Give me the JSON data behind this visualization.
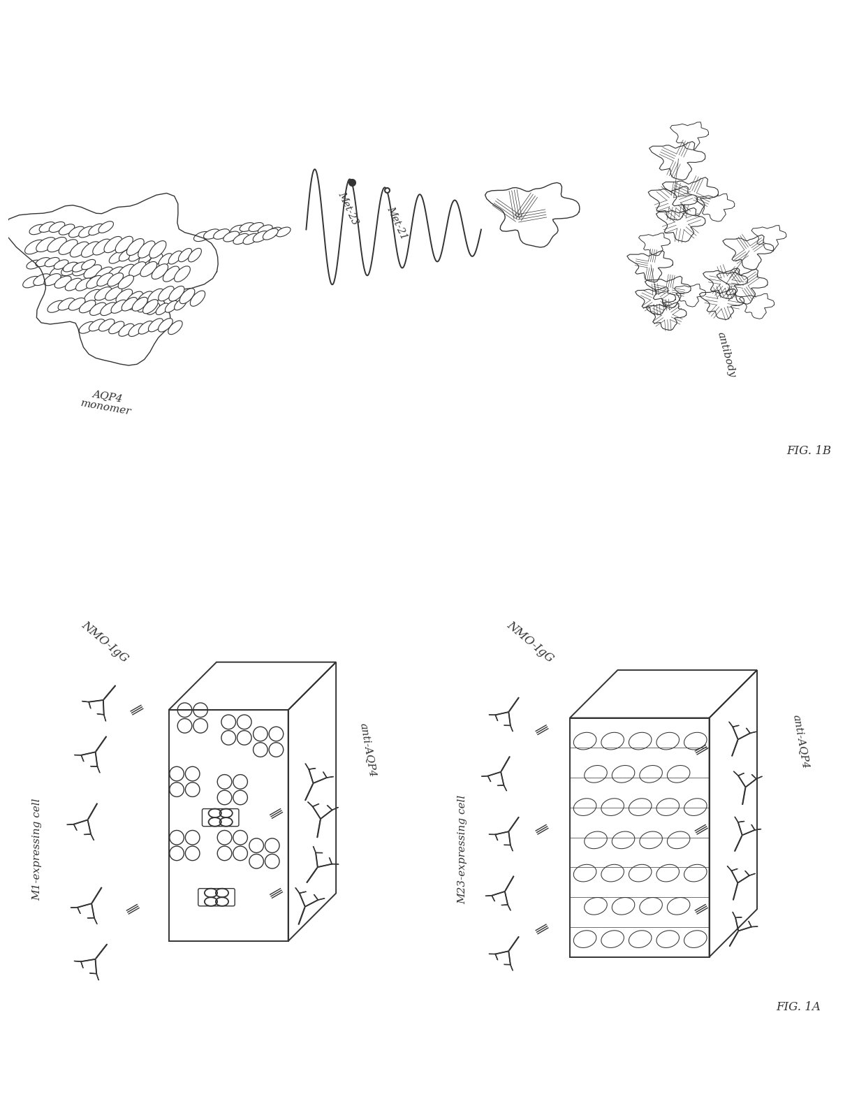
{
  "fig_label_1A": "FIG. 1A",
  "fig_label_1B": "FIG. 1B",
  "label_M1": "M1-expressing cell",
  "label_M23": "M23-expressing cell",
  "label_NMO_IgG": "NMO-IgG",
  "label_anti_AQP4": "anti-AQP4",
  "label_AQP4_monomer": "AQP4\nmonomer",
  "label_Met23": "Met-23",
  "label_Met21": "Met-21",
  "label_antibody": "antibody",
  "bg_color": "#ffffff",
  "line_color": "#333333",
  "line_width": 1.0
}
